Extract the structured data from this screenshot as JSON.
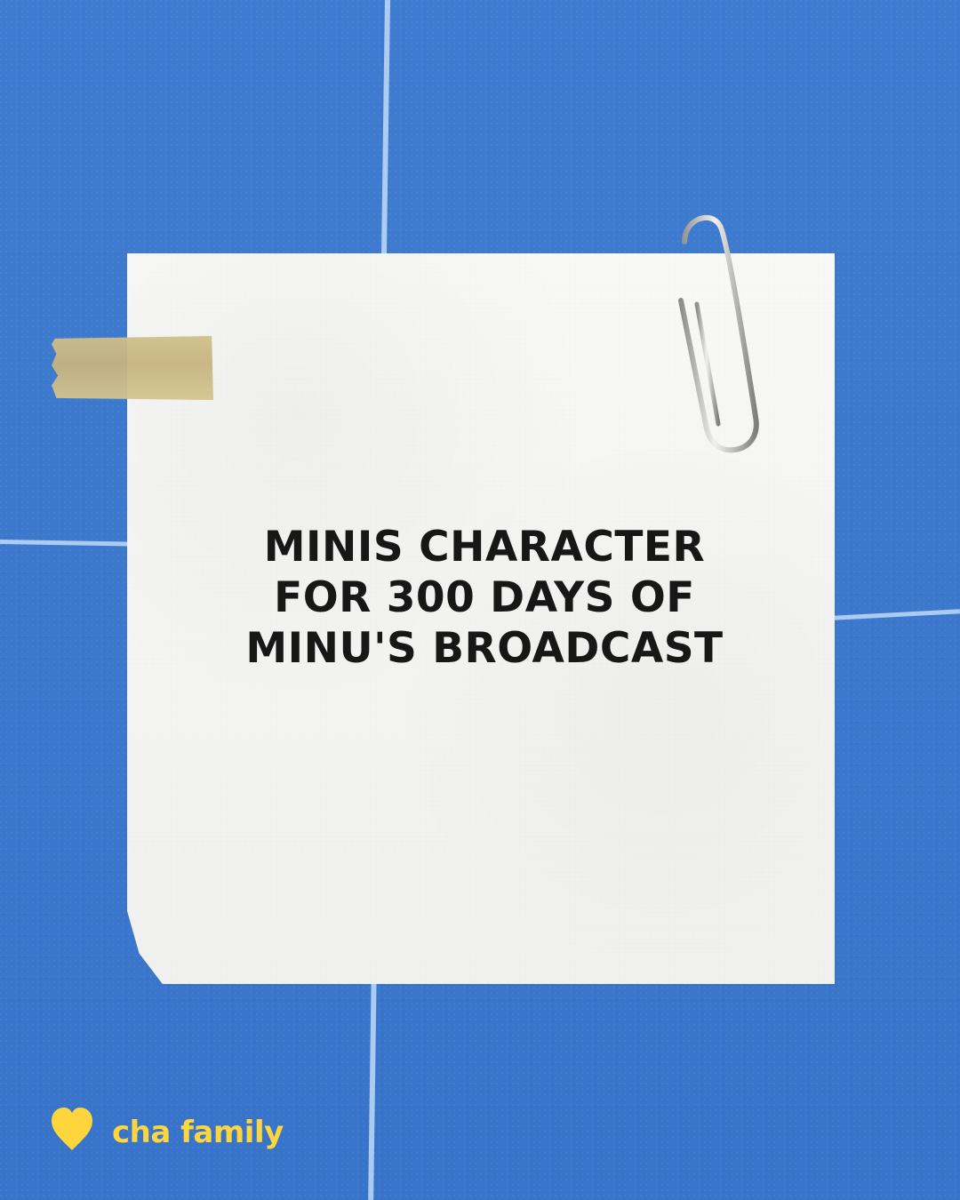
{
  "message": {
    "line1": "MINIS CHARACTER",
    "line2": "FOR 300 DAYS OF",
    "line3": "MINU'S BROADCAST"
  },
  "brand": {
    "name": "cha family",
    "icon": "heart-icon",
    "color": "#ffd53e"
  },
  "colors": {
    "background": "#3a78cf",
    "paper": "#f4f4f2",
    "tape": "#cdbd89"
  }
}
